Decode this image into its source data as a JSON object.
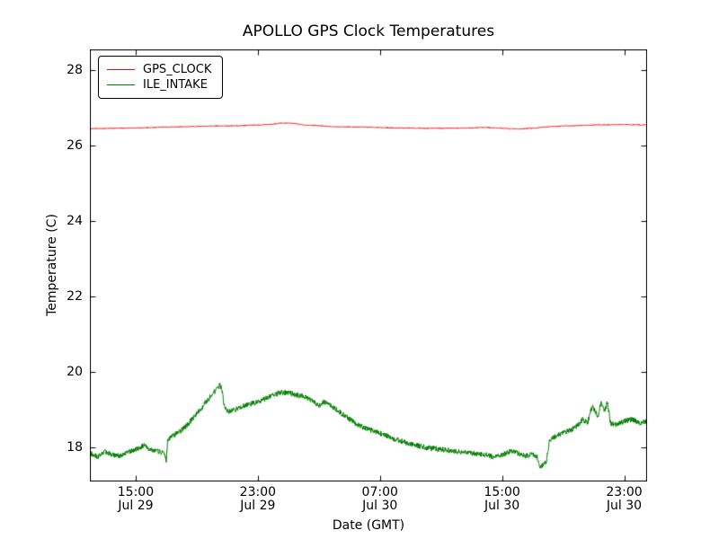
{
  "chart_data": {
    "type": "line",
    "title": "APOLLO GPS Clock Temperatures",
    "xlabel": "Date (GMT)",
    "ylabel": "Temperature (C)",
    "x_unit": "hours since Jul 29 12:00 GMT",
    "xlim": [
      0,
      36.5
    ],
    "ylim": [
      17.1,
      28.55
    ],
    "yticks": [
      18,
      20,
      22,
      24,
      26,
      28
    ],
    "xticks": [
      {
        "hour": 3,
        "time": "15:00",
        "date": "Jul 29"
      },
      {
        "hour": 11,
        "time": "23:00",
        "date": "Jul 29"
      },
      {
        "hour": 19,
        "time": "07:00",
        "date": "Jul 30"
      },
      {
        "hour": 27,
        "time": "15:00",
        "date": "Jul 30"
      },
      {
        "hour": 35,
        "time": "23:00",
        "date": "Jul 30"
      }
    ],
    "grid": false,
    "legend_position": "upper left",
    "frame_color": "#000000",
    "series": [
      {
        "name": "GPS_CLOCK",
        "color": "#ff0000",
        "noise_amp": 0.012,
        "keypoints": {
          "t": [
            0,
            2,
            4,
            6,
            8,
            10,
            11,
            12,
            12.5,
            13,
            13.5,
            14,
            15,
            16,
            18,
            20,
            22,
            24,
            25,
            26,
            27,
            28,
            29,
            30,
            31,
            32,
            33,
            34,
            35,
            36,
            36.5
          ],
          "v": [
            26.45,
            26.46,
            26.48,
            26.5,
            26.52,
            26.53,
            26.55,
            26.57,
            26.6,
            26.6,
            26.58,
            26.55,
            26.53,
            26.5,
            26.49,
            26.47,
            26.46,
            26.46,
            26.47,
            26.48,
            26.46,
            26.44,
            26.46,
            26.5,
            26.52,
            26.53,
            26.55,
            26.55,
            26.56,
            26.55,
            26.55
          ]
        }
      },
      {
        "name": "ILE_INTAKE",
        "color": "#007f00",
        "noise_amp": 0.07,
        "keypoints": {
          "t": [
            0,
            0.5,
            1,
            1.5,
            2,
            2.5,
            3,
            3.5,
            4,
            4.5,
            4.9,
            5.0,
            5.1,
            5.4,
            6,
            6.5,
            7,
            7.5,
            8,
            8.3,
            8.5,
            8.65,
            8.8,
            9,
            9.5,
            10,
            10.5,
            11,
            11.5,
            12,
            12.5,
            13,
            13.5,
            14,
            14.5,
            15,
            15.3,
            15.6,
            16,
            16.5,
            17,
            17.5,
            18,
            18.5,
            19,
            19.5,
            20,
            21,
            22,
            23,
            24,
            25,
            26,
            26.5,
            27,
            27.5,
            28,
            28.5,
            29,
            29.3,
            29.5,
            29.7,
            29.9,
            30.1,
            30.5,
            31,
            31.5,
            32,
            32.3,
            32.6,
            32.9,
            33.1,
            33.3,
            33.5,
            33.7,
            33.9,
            34.1,
            34.5,
            35,
            35.5,
            36,
            36.5
          ],
          "v": [
            17.85,
            17.75,
            17.9,
            17.8,
            17.78,
            17.88,
            17.95,
            18.05,
            17.95,
            17.9,
            17.85,
            17.6,
            18.2,
            18.3,
            18.45,
            18.65,
            18.9,
            19.15,
            19.4,
            19.55,
            19.65,
            19.55,
            19.1,
            18.95,
            19.0,
            19.1,
            19.15,
            19.2,
            19.3,
            19.4,
            19.45,
            19.45,
            19.4,
            19.35,
            19.25,
            19.1,
            19.2,
            19.15,
            19.05,
            18.9,
            18.75,
            18.62,
            18.52,
            18.45,
            18.38,
            18.3,
            18.22,
            18.1,
            18.0,
            17.95,
            17.9,
            17.85,
            17.8,
            17.75,
            17.8,
            17.9,
            17.85,
            17.78,
            17.82,
            17.75,
            17.45,
            17.55,
            17.6,
            18.2,
            18.3,
            18.4,
            18.45,
            18.6,
            18.75,
            18.65,
            19.1,
            18.95,
            18.8,
            19.25,
            18.95,
            19.2,
            18.65,
            18.6,
            18.7,
            18.75,
            18.65,
            18.7
          ]
        }
      }
    ]
  }
}
